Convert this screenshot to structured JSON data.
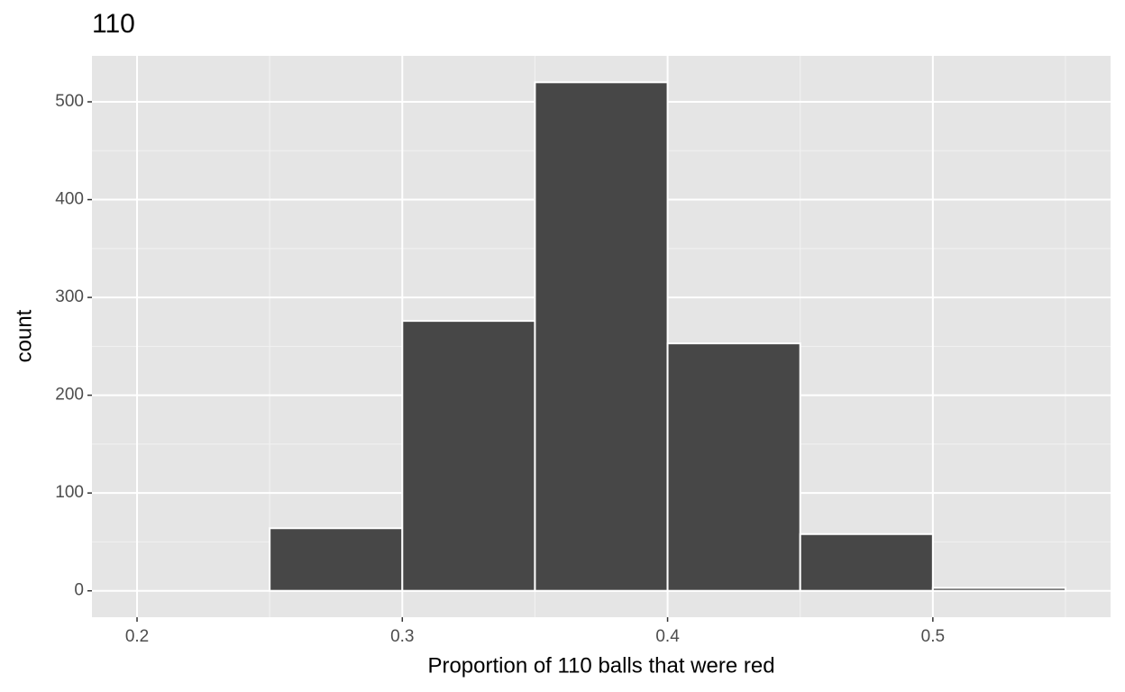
{
  "chart_data": {
    "type": "histogram",
    "title": "110",
    "x_label": "Proportion of 110 balls that were red",
    "y_label": "count",
    "bins": [
      0.2,
      0.25,
      0.3,
      0.35,
      0.4,
      0.45,
      0.5,
      0.55
    ],
    "values": [
      0,
      64,
      276,
      520,
      253,
      58,
      3
    ],
    "color": "#474747",
    "xlim": [
      0.183,
      0.567
    ],
    "ylim": [
      -27,
      547
    ],
    "xticks": [
      0.2,
      0.3,
      0.4,
      0.5
    ],
    "yticks": [
      0,
      100,
      200,
      300,
      400,
      500
    ],
    "x_minor_ticks": [
      0.25,
      0.35,
      0.45,
      0.55
    ],
    "y_minor_ticks": [
      50,
      150,
      250,
      350,
      450
    ],
    "grid": true
  }
}
